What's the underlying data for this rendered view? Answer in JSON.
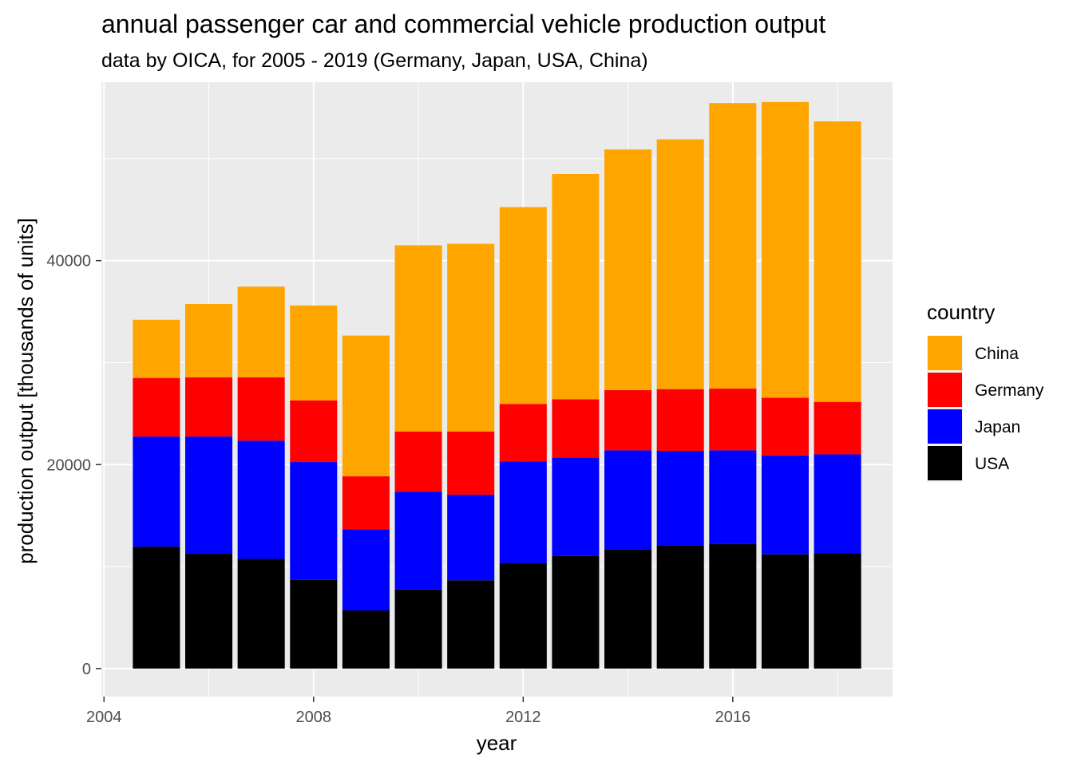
{
  "chart_data": {
    "type": "bar",
    "stacked": true,
    "title": "annual passenger car and commercial vehicle production output",
    "subtitle": "data by OICA, for 2005 - 2019 (Germany, Japan, USA, China)",
    "xlabel": "year",
    "ylabel": "production output [thousands of units]",
    "x": [
      2005,
      2006,
      2007,
      2008,
      2009,
      2010,
      2011,
      2012,
      2013,
      2014,
      2015,
      2016,
      2017,
      2018
    ],
    "xlim": [
      2003.95,
      2019.05
    ],
    "ylim": [
      -2750,
      57500
    ],
    "xticks": [
      2004,
      2008,
      2012,
      2016
    ],
    "xtick_labels": [
      "2004",
      "2008",
      "2012",
      "2016"
    ],
    "yticks": [
      0,
      20000,
      40000
    ],
    "ytick_labels": [
      "0",
      "20000",
      "40000"
    ],
    "grid": true,
    "stack_order_bottom_to_top": [
      "USA",
      "Japan",
      "Germany",
      "China"
    ],
    "legend": {
      "title": "country",
      "position": "right",
      "entries": [
        "China",
        "Germany",
        "Japan",
        "USA"
      ]
    },
    "colors": {
      "China": "#FFA500",
      "Germany": "#FF0000",
      "Japan": "#0000FF",
      "USA": "#000000",
      "panel": "#EBEBEB",
      "grid": "#FFFFFF"
    },
    "series": [
      {
        "name": "USA",
        "values": [
          11950,
          11250,
          10750,
          8700,
          5700,
          7750,
          8650,
          10350,
          11050,
          11650,
          12100,
          12200,
          11200,
          11300
        ]
      },
      {
        "name": "Japan",
        "values": [
          10800,
          11500,
          11600,
          11550,
          7950,
          9600,
          8400,
          9950,
          9650,
          9750,
          9250,
          9200,
          9700,
          9700
        ]
      },
      {
        "name": "Germany",
        "values": [
          5750,
          5800,
          6200,
          6050,
          5200,
          5900,
          6200,
          5650,
          5700,
          5900,
          6050,
          6050,
          5650,
          5150
        ]
      },
      {
        "name": "China",
        "values": [
          5700,
          7200,
          8900,
          9300,
          13800,
          18250,
          18400,
          19300,
          22100,
          23600,
          24500,
          28000,
          29000,
          27500
        ]
      }
    ]
  }
}
